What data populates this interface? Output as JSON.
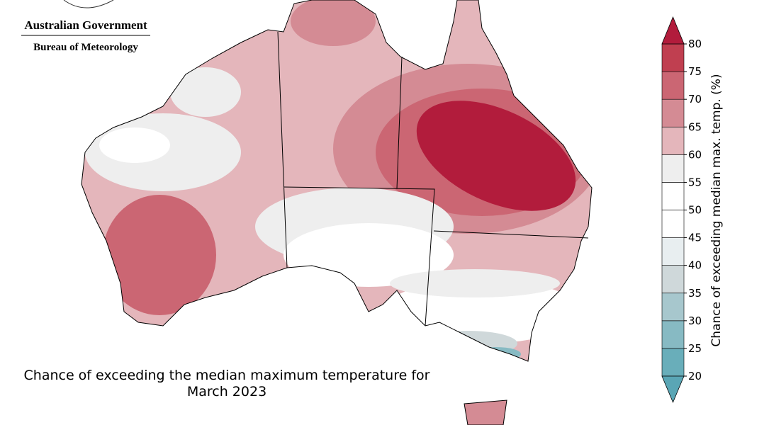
{
  "header": {
    "line1": "Australian Government",
    "line2": "Bureau of Meteorology"
  },
  "title_lines": [
    "Chance of exceeding the median maximum temperature for",
    "March 2023"
  ],
  "colorbar": {
    "label": "Chance of exceeding median max. temp. (%)",
    "ticks": [
      20,
      25,
      30,
      35,
      40,
      45,
      50,
      55,
      60,
      65,
      70,
      75,
      80
    ],
    "colors": [
      "#69aeba",
      "#87bac3",
      "#a7c7cd",
      "#cfd8da",
      "#e8eef0",
      "#ffffff",
      "#ffffff",
      "#eeeeee",
      "#e4b6bb",
      "#d48b94",
      "#cb6673",
      "#c03f50"
    ],
    "extend_colors": [
      "#5aa6b5",
      "#b21c3c"
    ]
  }
}
